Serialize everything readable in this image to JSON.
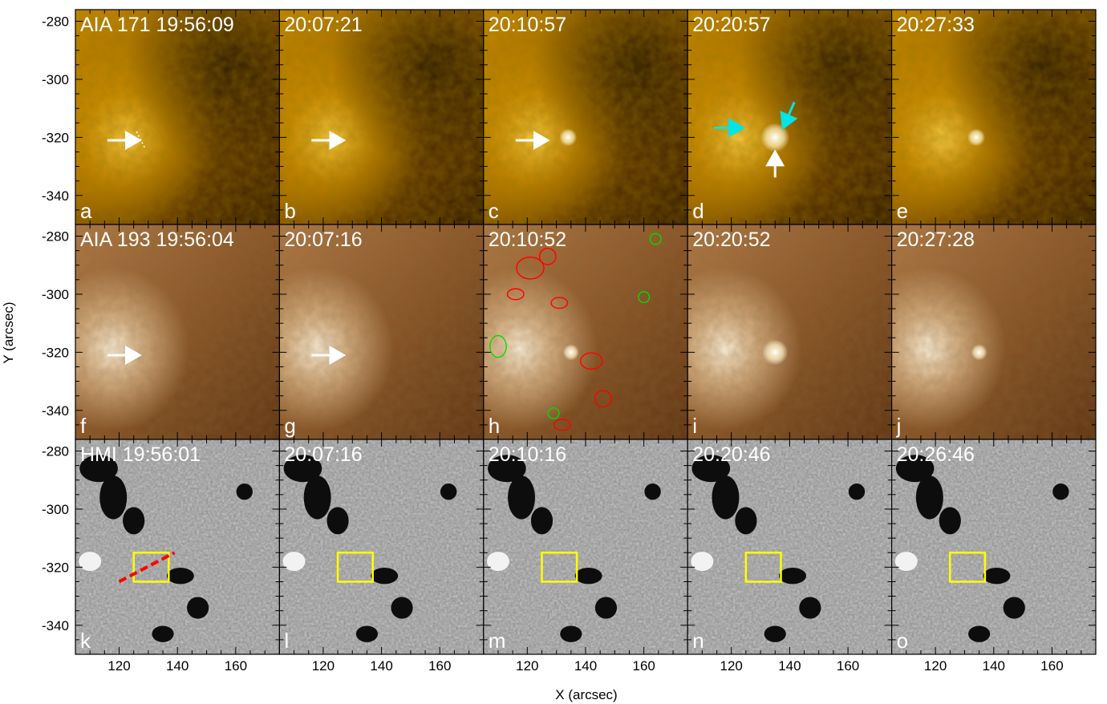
{
  "figure": {
    "x_axis_label": "X (arcsec)",
    "y_axis_label": "Y (arcsec)",
    "x_ticks": [
      "120",
      "140",
      "160"
    ],
    "y_ticks": [
      "-280",
      "-300",
      "-320",
      "-340"
    ]
  },
  "rows": [
    {
      "channel": "AIA 171",
      "colormap": "sdo-aia-171-gold",
      "panels": [
        {
          "letter": "a",
          "title": "AIA 171 19:56:09"
        },
        {
          "letter": "b",
          "title": "20:07:21"
        },
        {
          "letter": "c",
          "title": "20:10:57"
        },
        {
          "letter": "d",
          "title": "20:20:57"
        },
        {
          "letter": "e",
          "title": "20:27:33"
        }
      ]
    },
    {
      "channel": "AIA 193",
      "colormap": "sdo-aia-193-brown",
      "panels": [
        {
          "letter": "f",
          "title": "AIA 193 19:56:04"
        },
        {
          "letter": "g",
          "title": "20:07:16"
        },
        {
          "letter": "h",
          "title": "20:10:52"
        },
        {
          "letter": "i",
          "title": "20:20:52"
        },
        {
          "letter": "j",
          "title": "20:27:28"
        }
      ]
    },
    {
      "channel": "HMI",
      "colormap": "grayscale-magnetogram",
      "panels": [
        {
          "letter": "k",
          "title": "HMI 19:56:01"
        },
        {
          "letter": "l",
          "title": "20:07:16"
        },
        {
          "letter": "m",
          "title": "20:10:16"
        },
        {
          "letter": "n",
          "title": "20:20:46"
        },
        {
          "letter": "o",
          "title": "20:26:46"
        }
      ]
    }
  ],
  "overlay_colors": {
    "arrow_white": "#ffffff",
    "arrow_cyan": "#00e5e5",
    "contour_positive": "#ff0000",
    "contour_negative": "#00dd00",
    "box": "#ffff00",
    "slit": "#ff0000"
  }
}
